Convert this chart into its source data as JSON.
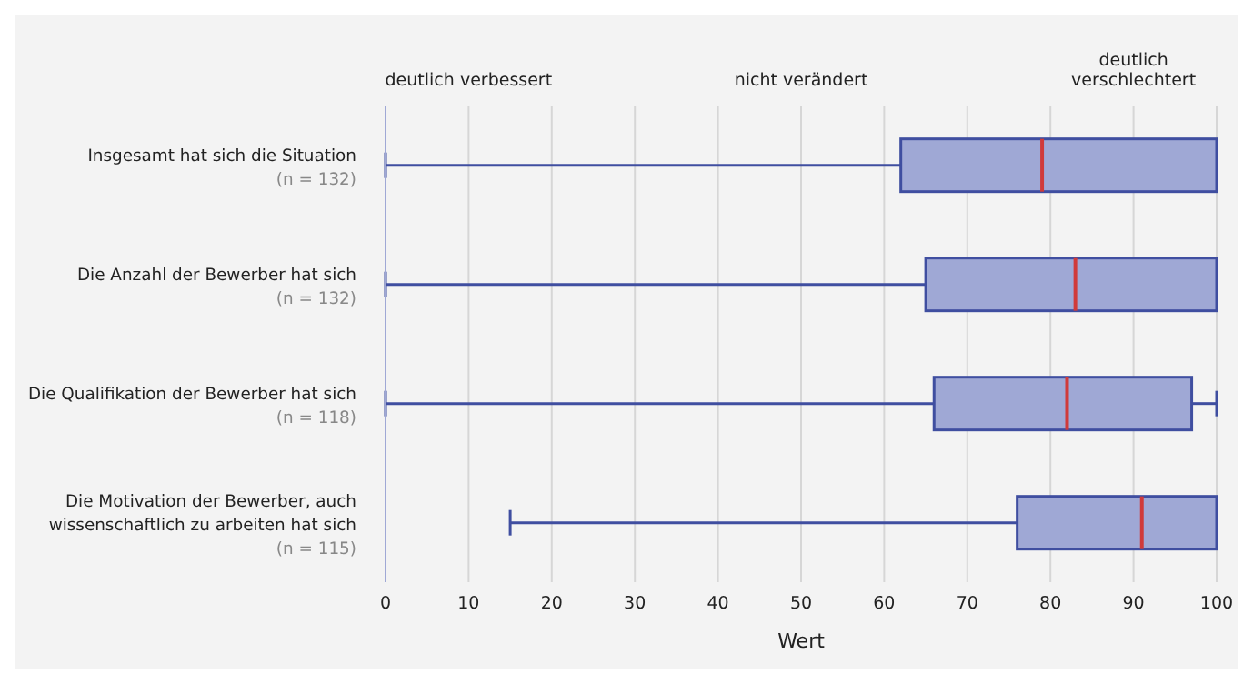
{
  "chart_data": {
    "type": "box",
    "orientation": "horizontal",
    "xlabel": "Wert",
    "annotations": [
      "deutlich verbessert",
      "nicht verändert",
      "deutlich verschlechtert"
    ],
    "categories": [
      "Insgesamt hat sich die Situation\n(n = 132)",
      "Die Anzahl der Bewerber hat sich\n(n = 132)",
      "Die Qualifikation der Bewerber hat sich\n(n = 118)",
      "Die Motivation der Bewerber, auch\nwissenschaftlich zu arbeiten hat sich\n(n = 115)"
    ],
    "boxes": [
      {
        "low": 0,
        "q1": 62,
        "median": 79,
        "q3": 100,
        "high": 100
      },
      {
        "low": 0,
        "q1": 65,
        "median": 83,
        "q3": 100,
        "high": 100
      },
      {
        "low": 0,
        "q1": 66,
        "median": 82,
        "q3": 97,
        "high": 100
      },
      {
        "low": 15,
        "q1": 76,
        "median": 91,
        "q3": 100,
        "high": 100
      }
    ],
    "color": "#9fa8d5",
    "xlim": [
      0,
      100
    ],
    "xticks": [
      0,
      10,
      20,
      30,
      40,
      50,
      60,
      70,
      80,
      90,
      100
    ],
    "grid": "x"
  }
}
